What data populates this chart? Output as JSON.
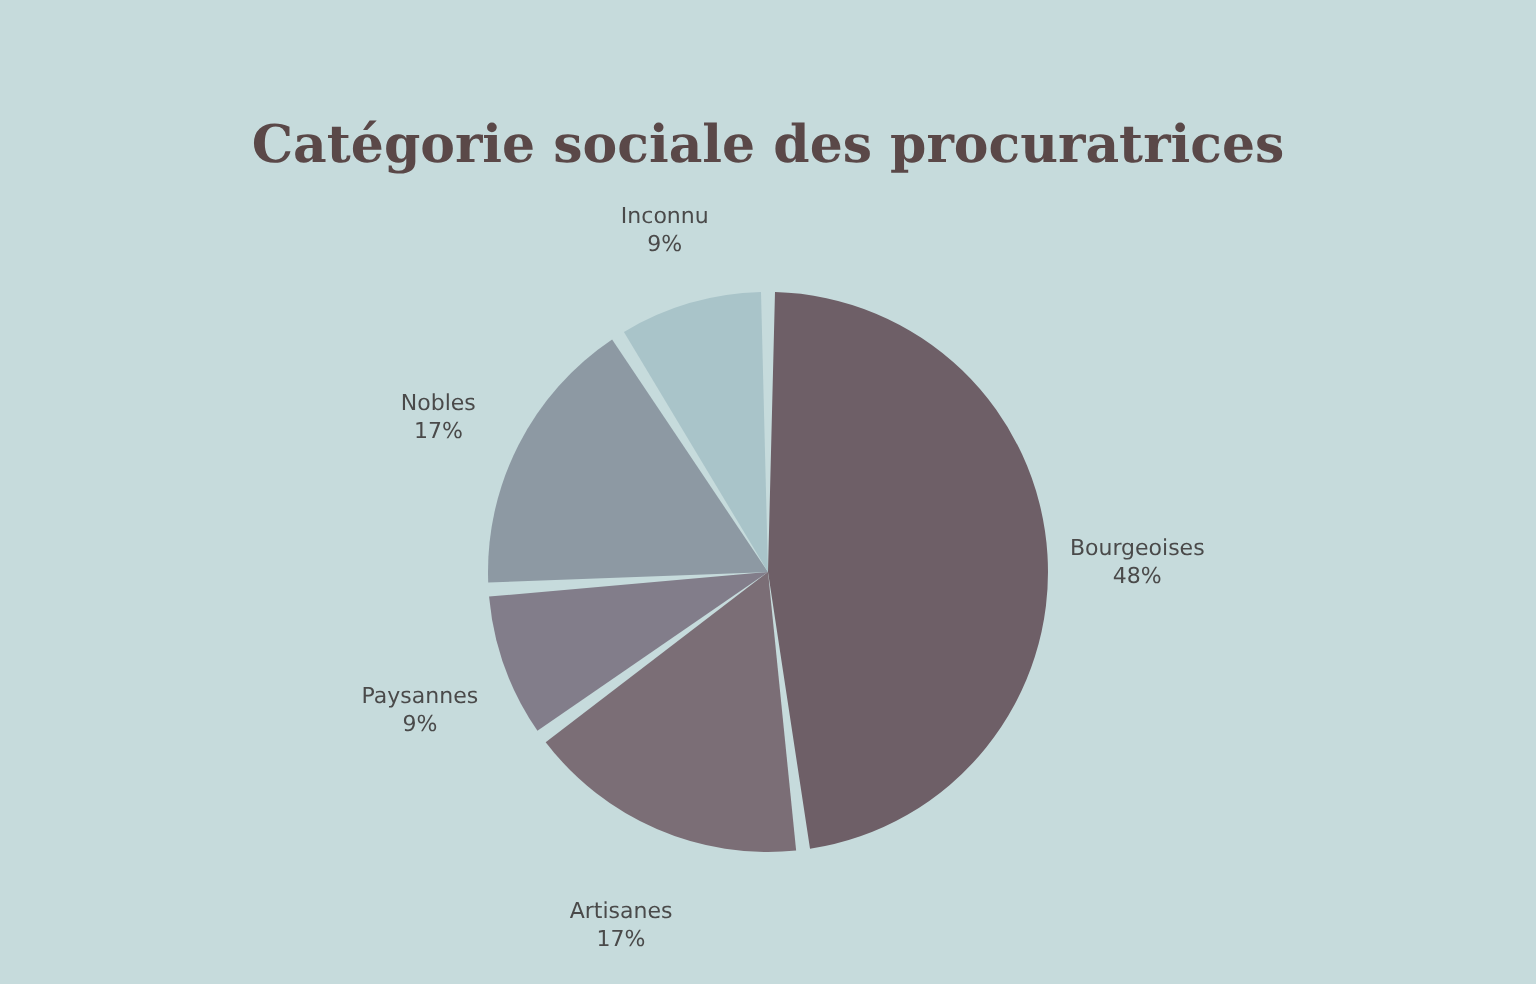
{
  "chart_data": {
    "type": "pie",
    "title": "Catégorie sociale des procuratrices",
    "categories": [
      "Bourgeoises",
      "Artisanes",
      "Paysannes",
      "Nobles",
      "Inconnu"
    ],
    "values": [
      48,
      17,
      9,
      17,
      9
    ],
    "value_labels": [
      "48%",
      "17%",
      "9%",
      "17%",
      "9%"
    ],
    "colors": [
      "#6e5f67",
      "#7b6e76",
      "#827d8a",
      "#8d99a3",
      "#a9c4c9"
    ],
    "legend": false
  }
}
